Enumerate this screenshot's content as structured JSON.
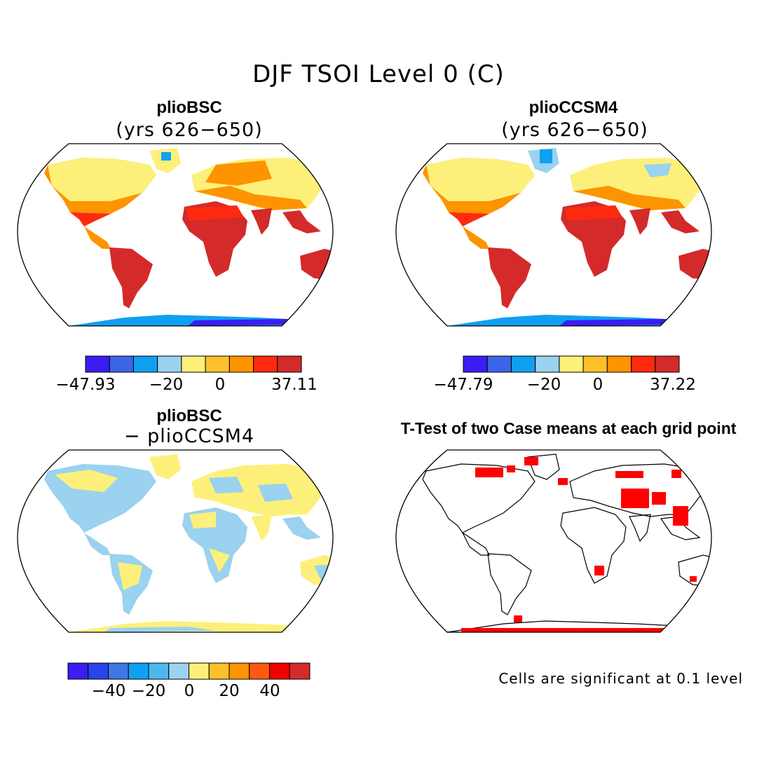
{
  "title": "DJF TSOI Level 0 (C)",
  "panels": [
    {
      "id": "p1",
      "title": "plioBSC",
      "subtitle": "(yrs 626−650)",
      "colorbar": {
        "labels": [
          "−47.93",
          "−20",
          "0",
          "37.11"
        ],
        "colors": [
          "#3a1ef2",
          "#3c64e6",
          "#10a0f2",
          "#9ad2ef",
          "#fdf07a",
          "#fdc02a",
          "#fd9400",
          "#fd2a10",
          "#d42a2a"
        ]
      }
    },
    {
      "id": "p2",
      "title": "plioCCSM4",
      "subtitle": "(yrs 626−650)",
      "colorbar": {
        "labels": [
          "−47.79",
          "−20",
          "0",
          "37.22"
        ],
        "colors": [
          "#3a1ef2",
          "#3c64e6",
          "#10a0f2",
          "#9ad2ef",
          "#fdf07a",
          "#fdc02a",
          "#fd9400",
          "#fd2a10",
          "#d42a2a"
        ]
      }
    },
    {
      "id": "p3",
      "title": "plioBSC",
      "subtitle": "− plioCCSM4",
      "colorbar": {
        "labels": [
          "−40",
          "−20",
          "0",
          "20",
          "40"
        ],
        "colors": [
          "#3a1ef2",
          "#2a44ea",
          "#3c78e6",
          "#10a0f2",
          "#4cb8f0",
          "#9ad2ef",
          "#fdf07a",
          "#fdc02a",
          "#fd9400",
          "#fd5a10",
          "#f00000",
          "#d42a2a"
        ]
      }
    },
    {
      "id": "p4",
      "title": "T-Test of two Case means at each grid point",
      "subtitle": "",
      "note": "Cells are significant at 0.1 level"
    }
  ],
  "palette": {
    "ocean": "#ffffff",
    "coast": "#000000",
    "warm": "#d42a2a",
    "hot": "#fd3020",
    "orange": "#fd9400",
    "yellow": "#fdf07a",
    "lightblue": "#9ad2ef",
    "blue": "#3a1ef2",
    "midblue": "#10a0f2",
    "signif": "#ff0000"
  }
}
